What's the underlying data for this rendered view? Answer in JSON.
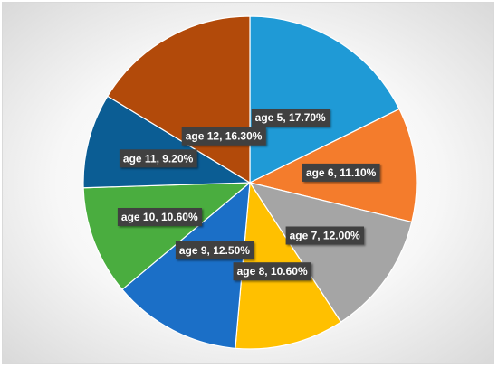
{
  "chart_data": {
    "type": "pie",
    "title": "",
    "categories": [
      "age 5",
      "age 6",
      "age 7",
      "age 8",
      "age 9",
      "age 10",
      "age 11",
      "age 12"
    ],
    "values": [
      17.7,
      11.1,
      12.0,
      10.6,
      12.5,
      10.6,
      9.2,
      16.3
    ],
    "labels": [
      "age 5, 17.70%",
      "age 6, 11.10%",
      "age 7, 12.00%",
      "age 8, 10.60%",
      "age 9, 12.50%",
      "age 10, 10.60%",
      "age 11, 9.20%",
      "age 12, 16.30%"
    ],
    "colors": [
      "#1f9ad6",
      "#f47c2c",
      "#a5a5a5",
      "#ffc000",
      "#1b6fc7",
      "#4aad3f",
      "#0b5d94",
      "#b24a0a"
    ],
    "start_angle_deg": 0,
    "direction": "clockwise",
    "legend": "none"
  }
}
